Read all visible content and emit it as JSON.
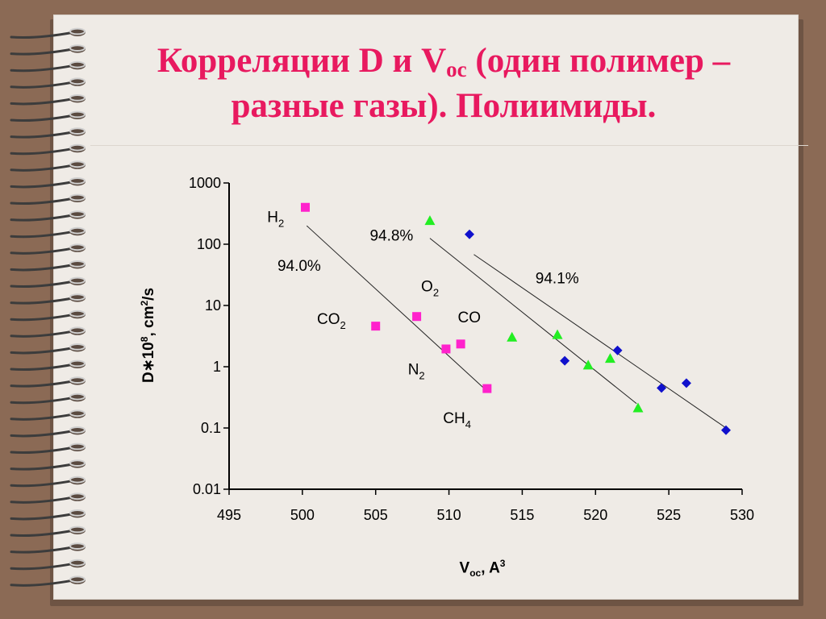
{
  "slide": {
    "title_line1_a": "Корреляции D и V",
    "title_line1_sub": "oc",
    "title_line1_b": " (один полимер –",
    "title_line2": "разные газы). Полиимиды."
  },
  "chart_data": {
    "type": "scatter",
    "title": "",
    "xlabel": {
      "main": "V",
      "sub": "oc",
      "suffix": ", A",
      "sup": "3"
    },
    "ylabel": {
      "main": "D∗10",
      "sup": "8",
      "suffix": ", cm",
      "sup2": "2",
      "tail": "/s"
    },
    "xlim": [
      495,
      530
    ],
    "ylim": [
      0.01,
      1000
    ],
    "yscale": "log",
    "grid": false,
    "x_ticks": [
      "495",
      "500",
      "505",
      "510",
      "515",
      "520",
      "525",
      "530"
    ],
    "y_ticks": [
      "0.01",
      "0.1",
      "1",
      "10",
      "100",
      "1000"
    ],
    "series": [
      {
        "color": "#ff22cc",
        "marker": "square",
        "points": [
          {
            "x": 500.2,
            "y": 400
          },
          {
            "x": 505.0,
            "y": 4.6
          },
          {
            "x": 507.8,
            "y": 6.6
          },
          {
            "x": 509.8,
            "y": 1.95
          },
          {
            "x": 510.8,
            "y": 2.35
          },
          {
            "x": 512.6,
            "y": 0.44
          }
        ],
        "fit": {
          "x1": 500.3,
          "y1": 200,
          "x2": 512.6,
          "y2": 0.4
        }
      },
      {
        "color": "#22ee22",
        "marker": "triangle",
        "points": [
          {
            "x": 508.7,
            "y": 240
          },
          {
            "x": 514.3,
            "y": 3.0
          },
          {
            "x": 517.4,
            "y": 3.3
          },
          {
            "x": 519.5,
            "y": 1.05
          },
          {
            "x": 521.0,
            "y": 1.35
          },
          {
            "x": 522.9,
            "y": 0.21
          }
        ],
        "fit": {
          "x1": 508.7,
          "y1": 125,
          "x2": 522.8,
          "y2": 0.25
        }
      },
      {
        "color": "#1010cc",
        "marker": "diamond",
        "points": [
          {
            "x": 511.4,
            "y": 145
          },
          {
            "x": 517.9,
            "y": 1.25
          },
          {
            "x": 521.5,
            "y": 1.85
          },
          {
            "x": 524.5,
            "y": 0.45
          },
          {
            "x": 526.2,
            "y": 0.54
          },
          {
            "x": 528.9,
            "y": 0.092
          }
        ],
        "fit": {
          "x1": 511.7,
          "y1": 68,
          "x2": 528.9,
          "y2": 0.1
        }
      }
    ],
    "annotations": [
      {
        "id": "h2",
        "main": "H",
        "sub": "2",
        "x": 497.6,
        "y": 230
      },
      {
        "id": "pct-94-0",
        "main": "94.0%",
        "sub": "",
        "x": 498.3,
        "y": 37
      },
      {
        "id": "pct-94-8",
        "main": "94.8%",
        "sub": "",
        "x": 504.6,
        "y": 115
      },
      {
        "id": "o2",
        "main": "O",
        "sub": "2",
        "x": 508.1,
        "y": 17
      },
      {
        "id": "co2",
        "main": "CO",
        "sub": "2",
        "x": 501.0,
        "y": 5.0
      },
      {
        "id": "co",
        "main": "CO",
        "sub": "",
        "x": 510.6,
        "y": 5.3
      },
      {
        "id": "n2",
        "main": "N",
        "sub": "2",
        "x": 507.2,
        "y": 0.75
      },
      {
        "id": "ch4",
        "main": "CH",
        "sub": "4",
        "x": 509.6,
        "y": 0.12
      },
      {
        "id": "pct-94-1",
        "main": "94.1%",
        "sub": "",
        "x": 515.9,
        "y": 23
      }
    ]
  }
}
